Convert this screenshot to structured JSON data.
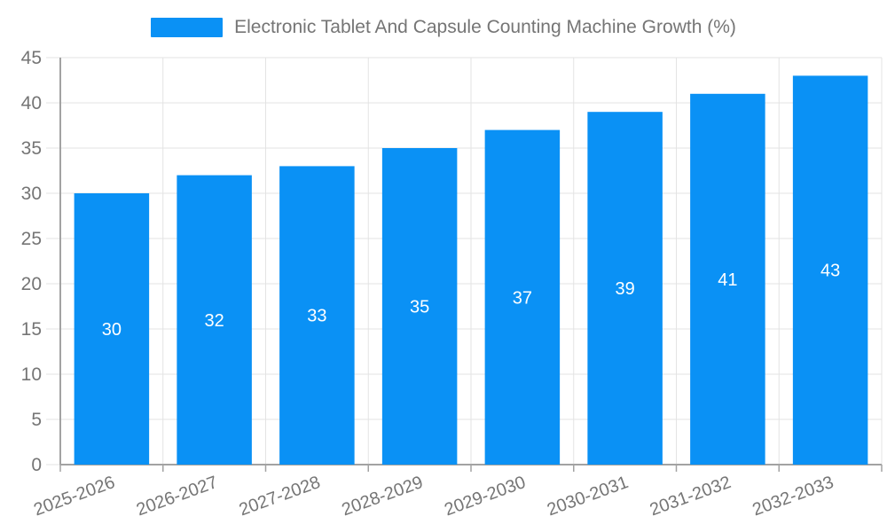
{
  "chart_data": {
    "type": "bar",
    "title": "Electronic Tablet And Capsule Counting Machine Growth (%)",
    "categories": [
      "2025-2026",
      "2026-2027",
      "2027-2028",
      "2028-2029",
      "2029-2030",
      "2030-2031",
      "2031-2032",
      "2032-2033"
    ],
    "values": [
      30,
      32,
      33,
      35,
      37,
      39,
      41,
      43
    ],
    "xlabel": "",
    "ylabel": "",
    "ylim": [
      0,
      45
    ],
    "ytick_step": 5,
    "grid": true,
    "legend_position": "top-center",
    "bar_labels_inside": true,
    "x_label_rotation_deg": -20,
    "colors": {
      "bar": "#0a91f5",
      "bar_value_label": "#ffffff",
      "axis_line": "#a2a2a2",
      "grid_line": "#e3e3e3",
      "tick_label": "#757575",
      "legend_text": "#757575",
      "background": "#ffffff"
    }
  }
}
